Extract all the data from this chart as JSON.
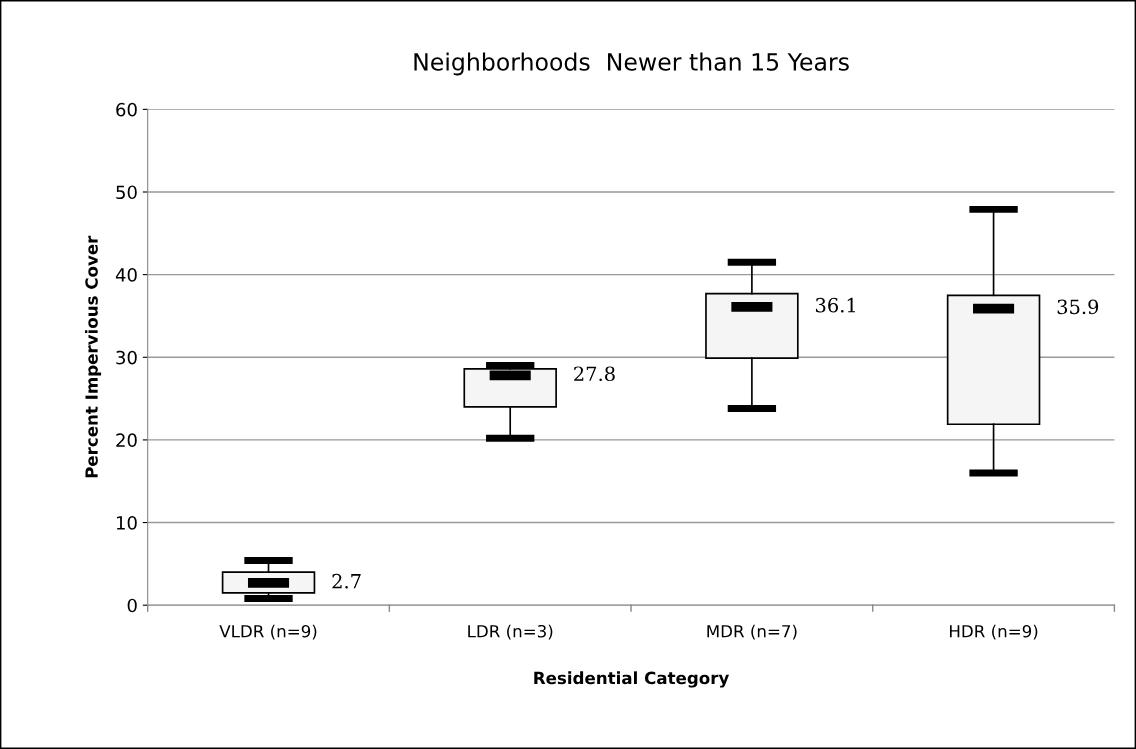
{
  "chart_data": {
    "type": "box",
    "title": "Neighborhoods  Newer than 15 Years",
    "xlabel": "Residential Category",
    "ylabel": "Percent Impervious Cover",
    "categories": [
      "VLDR (n=9)",
      "LDR (n=3)",
      "MDR (n=7)",
      "HDR (n=9)"
    ],
    "boxes": [
      {
        "low": 0.8,
        "q1": 1.5,
        "median": 2.7,
        "q3": 4.0,
        "high": 5.4
      },
      {
        "low": 20.2,
        "q1": 24.0,
        "median": 27.8,
        "q3": 28.6,
        "high": 29.0
      },
      {
        "low": 23.8,
        "q1": 29.9,
        "median": 36.1,
        "q3": 37.7,
        "high": 41.5
      },
      {
        "low": 16.0,
        "q1": 21.9,
        "median": 35.9,
        "q3": 37.5,
        "high": 47.9
      }
    ],
    "color": "#f5f5f5",
    "annotations": [
      "2.7",
      "27.8",
      "36.1",
      "35.9"
    ],
    "ylim": [
      0,
      60
    ],
    "yticks": [
      0,
      10,
      20,
      30,
      40,
      50,
      60
    ],
    "grid": "y",
    "legend": false
  }
}
